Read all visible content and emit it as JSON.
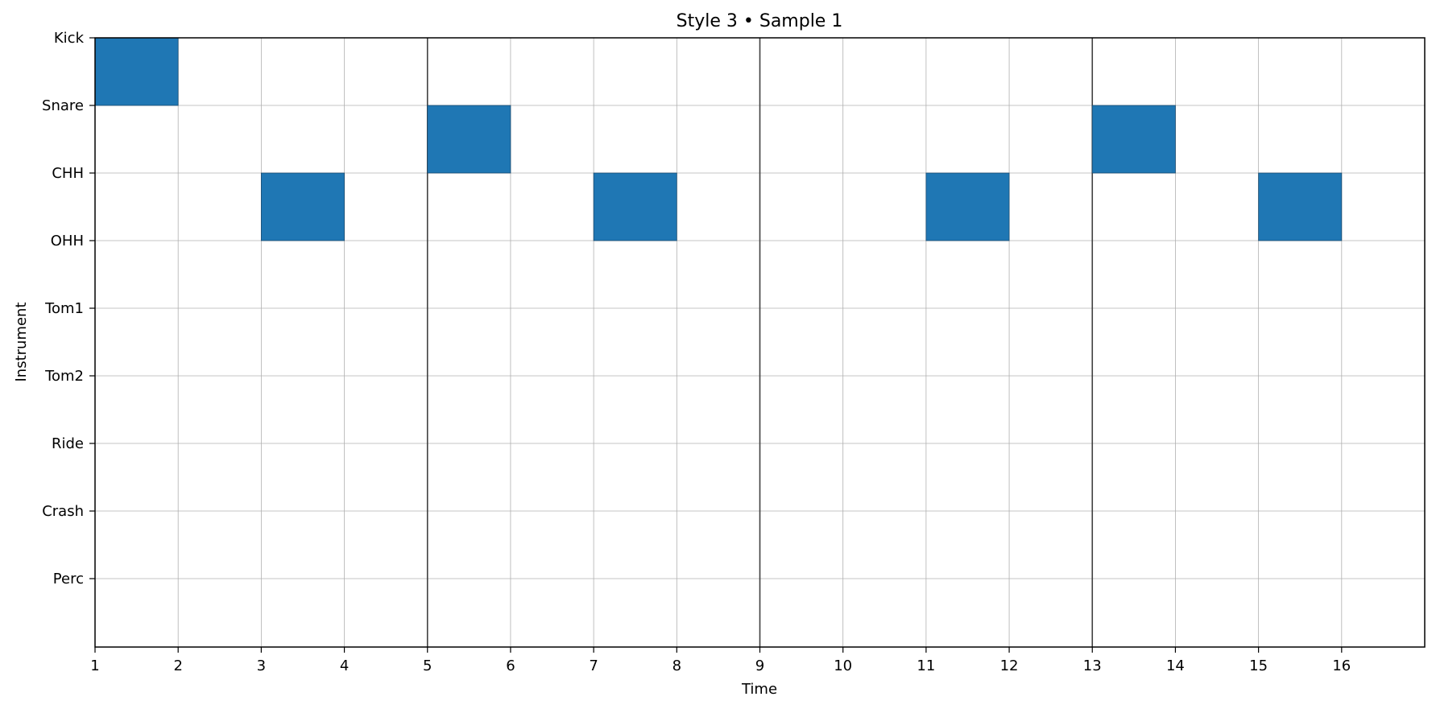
{
  "chart_data": {
    "type": "heatmap",
    "title": "Style 3 • Sample 1",
    "xlabel": "Time",
    "ylabel": "Instrument",
    "xlim": [
      1,
      17
    ],
    "x_ticks": [
      1,
      2,
      3,
      4,
      5,
      6,
      7,
      8,
      9,
      10,
      11,
      12,
      13,
      14,
      15,
      16
    ],
    "instruments": [
      "Kick",
      "Snare",
      "CHH",
      "OHH",
      "Tom1",
      "Tom2",
      "Ride",
      "Crash",
      "Perc"
    ],
    "bar_lines": [
      5,
      9,
      13
    ],
    "grid": true,
    "cell_color": "#1f77b4",
    "notes": [
      {
        "instrument": "Kick",
        "start": 1,
        "end": 2
      },
      {
        "instrument": "Snare",
        "start": 5,
        "end": 6
      },
      {
        "instrument": "Snare",
        "start": 13,
        "end": 14
      },
      {
        "instrument": "CHH",
        "start": 3,
        "end": 4
      },
      {
        "instrument": "CHH",
        "start": 7,
        "end": 8
      },
      {
        "instrument": "CHH",
        "start": 11,
        "end": 12
      },
      {
        "instrument": "CHH",
        "start": 15,
        "end": 16
      }
    ]
  }
}
